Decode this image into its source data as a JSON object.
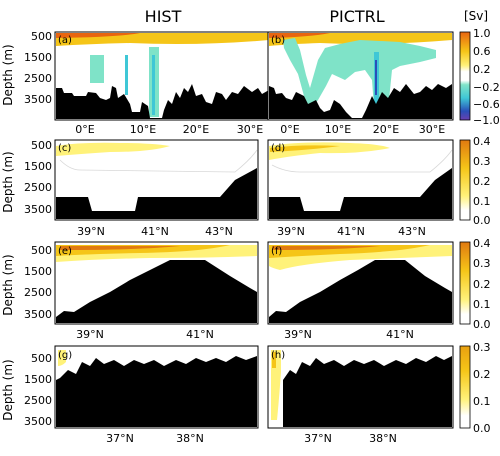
{
  "figure": {
    "column_titles": [
      "HIST",
      "PICTRL"
    ],
    "colorbar_unit": "[Sv]"
  },
  "chart_data": [
    {
      "type": "heatmap",
      "row": 1,
      "panels": [
        "(a)",
        "(b)"
      ],
      "ylabel": "Depth (m)",
      "yticks": [
        "500",
        "1500",
        "2500",
        "3500"
      ],
      "xticks": [
        "0°E",
        "10°E",
        "20°E",
        "30°E"
      ],
      "colorbar_ticks": [
        "1.0",
        "0.6",
        "0.2",
        "−0.2",
        "−0.6",
        "−1.0"
      ],
      "colors": {
        "high": "#e8650f",
        "mid": "#f5c518",
        "low": "#fff27a",
        "neg_weak": "#7fe3c8",
        "neg_mid": "#3fc7d6",
        "neg_strong": "#2a4fb8",
        "neg_min": "#6a3fb0",
        "topography": "#000000"
      }
    },
    {
      "type": "heatmap",
      "row": 2,
      "panels": [
        "(c)",
        "(d)"
      ],
      "ylabel": "Depth (m)",
      "yticks": [
        "500",
        "1500",
        "2500",
        "3500"
      ],
      "xticks": [
        "39°N",
        "41°N",
        "43°N"
      ],
      "colorbar_ticks": [
        "0.4",
        "0.3",
        "0.2",
        "0.1",
        "0.0"
      ],
      "colors": {
        "high": "#e07a10",
        "mid": "#f5c518",
        "low": "#fff27a",
        "zero": "#ffffff",
        "topography": "#000000"
      }
    },
    {
      "type": "heatmap",
      "row": 3,
      "panels": [
        "(e)",
        "(f)"
      ],
      "ylabel": "Depth (m)",
      "yticks": [
        "500",
        "1500",
        "2500",
        "3500"
      ],
      "xticks": [
        "39°N",
        "41°N"
      ],
      "colorbar_ticks": [
        "0.4",
        "0.3",
        "0.2",
        "0.1",
        "0.0"
      ],
      "colors": {
        "high": "#e07a10",
        "mid": "#f5c518",
        "low": "#fff27a",
        "zero": "#ffffff",
        "topography": "#000000"
      }
    },
    {
      "type": "heatmap",
      "row": 4,
      "panels": [
        "(g)",
        "(h)"
      ],
      "ylabel": "Depth (m)",
      "yticks": [
        "500",
        "1500",
        "2500",
        "3500"
      ],
      "xticks": [
        "37°N",
        "38°N"
      ],
      "colorbar_ticks": [
        "0.3",
        "0.2",
        "0.1",
        "0.0"
      ],
      "colors": {
        "high": "#e8a010",
        "mid": "#f5c518",
        "low": "#fff27a",
        "zero": "#ffffff",
        "topography": "#000000"
      }
    }
  ]
}
